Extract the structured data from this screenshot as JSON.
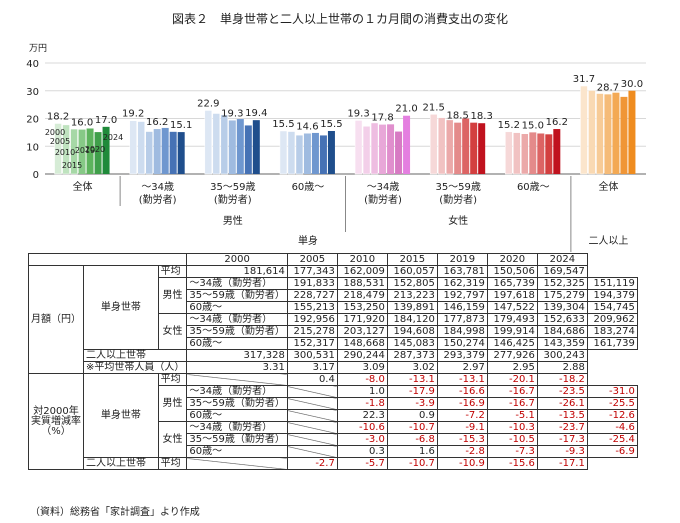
{
  "title": "図表２　単身世帯と二人以上世帯の１カ月間の消費支出の変化",
  "source": "（資料）総務省「家計調査」より作成",
  "chart_data": {
    "type": "bar",
    "unit": "万円",
    "ylim": [
      0,
      40
    ],
    "yticks": [
      "0",
      "10",
      "20",
      "30",
      "40"
    ],
    "years": [
      "2000",
      "2005",
      "2010",
      "2015",
      "2019",
      "2020",
      "2024"
    ],
    "groups": [
      {
        "label": "全体",
        "values": [
          18.2,
          17.7,
          16.2,
          16.0,
          16.4,
          15.1,
          17.0
        ],
        "labels": [
          "18.2",
          "16.0",
          "17.0"
        ],
        "palette": "green"
      },
      {
        "label": "～34歳\n(勤労者)",
        "values": [
          19.2,
          18.9,
          15.3,
          16.2,
          16.6,
          15.2,
          15.1
        ],
        "labels": [
          "19.2",
          "16.2",
          "15.1"
        ],
        "palette": "blue"
      },
      {
        "label": "35～59歳\n(勤労者)",
        "values": [
          22.9,
          21.8,
          21.3,
          19.3,
          19.8,
          17.5,
          19.4
        ],
        "labels": [
          "22.9",
          "19.3",
          "19.4"
        ],
        "palette": "blue"
      },
      {
        "label": "60歳～",
        "values": [
          15.5,
          15.3,
          14.0,
          14.6,
          14.8,
          13.9,
          15.5
        ],
        "labels": [
          "15.5",
          "14.6",
          "15.5"
        ],
        "palette": "blue"
      },
      {
        "label": "～34歳\n(勤労者)",
        "values": [
          19.3,
          17.2,
          18.4,
          17.8,
          17.9,
          15.3,
          21.0
        ],
        "labels": [
          "19.3",
          "17.8",
          "21.0"
        ],
        "palette": "pink"
      },
      {
        "label": "35～59歳\n(勤労者)",
        "values": [
          21.5,
          20.3,
          19.5,
          18.5,
          20.0,
          18.5,
          18.3
        ],
        "labels": [
          "21.5",
          "18.5",
          "18.3"
        ],
        "palette": "red"
      },
      {
        "label": "60歳～",
        "values": [
          15.2,
          14.9,
          14.5,
          15.0,
          14.6,
          14.3,
          16.2
        ],
        "labels": [
          "15.2",
          "15.0",
          "16.2"
        ],
        "palette": "red"
      },
      {
        "label": "全体",
        "values": [
          31.7,
          30.1,
          29.0,
          28.7,
          29.3,
          27.8,
          30.0
        ],
        "labels": [
          "31.7",
          "28.7",
          "30.0"
        ],
        "palette": "orange"
      }
    ],
    "sex_labels": [
      "男性",
      "女性"
    ],
    "household_labels": [
      "単身",
      "二人以上"
    ],
    "inline_year_labels": [
      "2000",
      "2005",
      "2010",
      "2015",
      "2019",
      "2020",
      "2024"
    ],
    "palettes": {
      "green": [
        "#d6ecd6",
        "#bfe3bf",
        "#a6d8a6",
        "#86c986",
        "#5db35d",
        "#3f9f4a",
        "#1f8a3a"
      ],
      "blue": [
        "#dde7f4",
        "#cddcef",
        "#b8cde8",
        "#9fbbe0",
        "#6f97cf",
        "#4672b5",
        "#1f4e8c"
      ],
      "pink": [
        "#f7dff0",
        "#f3cfe9",
        "#eebde1",
        "#e8a7d8",
        "#e08fcd",
        "#d77ac3",
        "#e47fe0"
      ],
      "red": [
        "#f6d8d8",
        "#f1c2c2",
        "#eba9a9",
        "#e48a8a",
        "#dc6464",
        "#d33f3f",
        "#c0121e"
      ],
      "orange": [
        "#fbe5cc",
        "#f9d9b3",
        "#f7cb97",
        "#f5bb78",
        "#f3a954",
        "#f09637",
        "#ef8c1f"
      ]
    }
  },
  "table": {
    "years": [
      "2000",
      "2005",
      "2010",
      "2015",
      "2019",
      "2020",
      "2024"
    ],
    "section_monthly": "月額（円）",
    "section_growth": "対2000年\n実質増減率\n（%）",
    "single": "単身世帯",
    "multi": "二人以上世帯",
    "male": "男性",
    "female": "女性",
    "monthly_rows": [
      {
        "label": "平均",
        "values": [
          "181,614",
          "177,343",
          "162,009",
          "160,057",
          "163,781",
          "150,506",
          "169,547"
        ]
      },
      {
        "label": "～34歳（勤労者）",
        "values": [
          "191,833",
          "188,531",
          "152,805",
          "162,319",
          "165,739",
          "152,325",
          "151,119"
        ]
      },
      {
        "label": "35～59歳（勤労者）",
        "values": [
          "228,727",
          "218,479",
          "213,223",
          "192,797",
          "197,618",
          "175,279",
          "194,379"
        ]
      },
      {
        "label": "60歳～",
        "values": [
          "155,213",
          "153,250",
          "139,891",
          "146,159",
          "147,522",
          "139,304",
          "154,745"
        ]
      },
      {
        "label": "～34歳（勤労者）",
        "values": [
          "192,956",
          "171,920",
          "184,120",
          "177,873",
          "179,493",
          "152,633",
          "209,962"
        ]
      },
      {
        "label": "35～59歳（勤労者）",
        "values": [
          "215,278",
          "203,127",
          "194,608",
          "184,998",
          "199,914",
          "184,686",
          "183,274"
        ]
      },
      {
        "label": "60歳～",
        "values": [
          "152,317",
          "148,668",
          "145,083",
          "150,274",
          "146,425",
          "143,359",
          "161,739"
        ]
      },
      {
        "label": "",
        "values": [
          "317,328",
          "300,531",
          "290,244",
          "287,373",
          "293,379",
          "277,926",
          "300,243"
        ]
      },
      {
        "label": "※平均世帯人員（人）",
        "values": [
          "3.31",
          "3.17",
          "3.09",
          "3.02",
          "2.97",
          "2.95",
          "2.88"
        ]
      }
    ],
    "growth_rows": [
      {
        "label": "平均",
        "values": [
          "",
          "0.4",
          "-8.0",
          "-13.1",
          "-13.1",
          "-20.1",
          "-18.2"
        ]
      },
      {
        "label": "～34歳（勤労者）",
        "values": [
          "",
          "1.0",
          "-17.9",
          "-16.6",
          "-16.7",
          "-23.5",
          "-31.0"
        ]
      },
      {
        "label": "35～59歳（勤労者）",
        "values": [
          "",
          "-1.8",
          "-3.9",
          "-16.9",
          "-16.7",
          "-26.1",
          "-25.5"
        ]
      },
      {
        "label": "60歳～",
        "values": [
          "",
          "22.3",
          "0.9",
          "-7.2",
          "-5.1",
          "-13.5",
          "-12.6"
        ]
      },
      {
        "label": "～34歳（勤労者）",
        "values": [
          "",
          "-10.6",
          "-10.7",
          "-9.1",
          "-10.3",
          "-23.7",
          "-4.6"
        ]
      },
      {
        "label": "35～59歳（勤労者）",
        "values": [
          "",
          "-3.0",
          "-6.8",
          "-15.3",
          "-10.5",
          "-17.3",
          "-25.4"
        ]
      },
      {
        "label": "60歳～",
        "values": [
          "",
          "0.3",
          "1.6",
          "-2.8",
          "-7.3",
          "-9.3",
          "-6.9"
        ]
      },
      {
        "label": "平均",
        "values": [
          "",
          "-2.7",
          "-5.7",
          "-10.7",
          "-10.9",
          "-15.6",
          "-17.1"
        ]
      }
    ]
  }
}
